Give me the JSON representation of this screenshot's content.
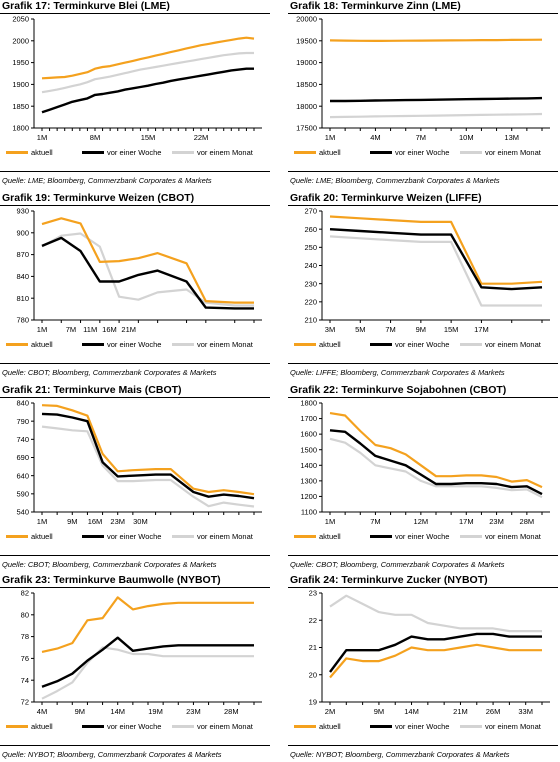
{
  "colors": {
    "aktuell": "#F4A11E",
    "woche": "#000000",
    "monat": "#D3D3D3",
    "axis": "#000000"
  },
  "chart_data": [
    {
      "prefix": "Grafik 17",
      "title": "Terminkurve Blei (LME)",
      "type": "line",
      "categories": [
        "1M",
        "8M",
        "15M",
        "22M"
      ],
      "x": [
        1,
        2,
        3,
        4,
        5,
        6,
        7,
        8,
        9,
        10,
        11,
        12,
        13,
        14,
        15,
        16,
        17,
        18,
        19,
        20,
        21,
        22,
        23,
        24,
        25,
        26,
        27,
        28,
        29
      ],
      "ylim": [
        1800,
        2050
      ],
      "yticks": [
        1800,
        1850,
        1900,
        1950,
        2000,
        2050
      ],
      "series": [
        {
          "name": "aktuell",
          "values": [
            1914,
            1915,
            1916,
            1917,
            1920,
            1924,
            1928,
            1936,
            1940,
            1942,
            1946,
            1950,
            1954,
            1958,
            1962,
            1966,
            1970,
            1974,
            1978,
            1982,
            1986,
            1990,
            1993,
            1996,
            1999,
            2002,
            2005,
            2007,
            2005
          ]
        },
        {
          "name": "vor einer Woche",
          "values": [
            1836,
            1842,
            1848,
            1854,
            1860,
            1864,
            1868,
            1876,
            1878,
            1881,
            1884,
            1888,
            1891,
            1894,
            1897,
            1901,
            1904,
            1908,
            1911,
            1914,
            1917,
            1920,
            1923,
            1926,
            1929,
            1932,
            1934,
            1936,
            1936
          ]
        },
        {
          "name": "vor einem Monat",
          "values": [
            1882,
            1885,
            1888,
            1892,
            1896,
            1900,
            1905,
            1912,
            1915,
            1918,
            1922,
            1926,
            1930,
            1934,
            1937,
            1940,
            1943,
            1946,
            1949,
            1952,
            1955,
            1958,
            1961,
            1964,
            1967,
            1969,
            1971,
            1972,
            1972
          ]
        }
      ],
      "legend": [
        "aktuell",
        "vor einer Woche",
        "vor einem Monat"
      ],
      "source": "Quelle: LME; Bloomberg, Commerzbank Corporates & Markets"
    },
    {
      "prefix": "Grafik 18",
      "title": "Terminkurve Zinn (LME)",
      "type": "line",
      "categories": [
        "1M",
        "4M",
        "7M",
        "10M",
        "13M"
      ],
      "x": [
        1,
        2,
        3,
        4,
        5,
        6,
        7,
        8,
        9,
        10,
        11,
        12,
        13,
        14,
        15
      ],
      "ylim": [
        17500,
        20000
      ],
      "yticks": [
        17500,
        18000,
        18500,
        19000,
        19500,
        20000
      ],
      "series": [
        {
          "name": "aktuell",
          "values": [
            19510,
            19505,
            19500,
            19498,
            19500,
            19502,
            19505,
            19507,
            19510,
            19512,
            19515,
            19517,
            19520,
            19522,
            19525
          ]
        },
        {
          "name": "vor einer Woche",
          "values": [
            18120,
            18120,
            18125,
            18130,
            18135,
            18140,
            18145,
            18150,
            18155,
            18160,
            18165,
            18170,
            18175,
            18180,
            18185
          ]
        },
        {
          "name": "vor einem Monat",
          "values": [
            17750,
            17755,
            17760,
            17765,
            17770,
            17775,
            17780,
            17785,
            17790,
            17795,
            17800,
            17805,
            17810,
            17815,
            17820
          ]
        }
      ],
      "legend": [
        "aktuell",
        "vor einer Woche",
        "vor einem Monat"
      ],
      "source": "Quelle: LME; Bloomberg, Commerzbank Corporates & Markets"
    },
    {
      "prefix": "Grafik 19",
      "title": "Terminkurve Weizen (CBOT)",
      "type": "line",
      "categories": [
        "1M",
        "7M",
        "11M",
        "16M",
        "21M"
      ],
      "x": [
        1,
        3,
        5,
        7,
        9,
        11,
        13,
        16,
        18,
        21,
        23
      ],
      "ylim": [
        780,
        930
      ],
      "yticks": [
        780,
        810,
        840,
        870,
        900,
        930
      ],
      "series": [
        {
          "name": "aktuell",
          "values": [
            912,
            920,
            913,
            860,
            861,
            865,
            872,
            858,
            806,
            804,
            804
          ]
        },
        {
          "name": "vor einer Woche",
          "values": [
            882,
            893,
            875,
            833,
            833,
            842,
            848,
            833,
            797,
            796,
            796
          ]
        },
        {
          "name": "vor einem Monat",
          "values": [
            881,
            896,
            899,
            881,
            812,
            808,
            818,
            822,
            804,
            800,
            800
          ]
        }
      ],
      "legend": [
        "aktuell",
        "vor einer Woche",
        "vor einem Monat"
      ],
      "source": "Quelle: CBOT; Bloomberg, Commerzbank Corporates & Markets"
    },
    {
      "prefix": "Grafik 20",
      "title": "Terminkurve Weizen (LIFFE)",
      "type": "line",
      "categories": [
        "3M",
        "5M",
        "7M",
        "9M",
        "15M",
        "17M"
      ],
      "x": [
        1,
        2,
        3,
        4,
        5,
        6,
        7,
        8
      ],
      "ylim": [
        210,
        270
      ],
      "yticks": [
        210,
        220,
        230,
        240,
        250,
        260,
        270
      ],
      "series": [
        {
          "name": "aktuell",
          "values": [
            267,
            266,
            265,
            264,
            264,
            230,
            230,
            231
          ]
        },
        {
          "name": "vor einer Woche",
          "values": [
            260,
            259,
            258,
            257,
            257,
            228,
            227,
            228
          ]
        },
        {
          "name": "vor einem Monat",
          "values": [
            256,
            255,
            254,
            253,
            253,
            218,
            218,
            218
          ]
        }
      ],
      "legend": [
        "aktuell",
        "vor einer Woche",
        "vor einem Monat"
      ],
      "source": "Quelle: LIFFE; Bloomberg, Commerzbank Corporates & Markets"
    },
    {
      "prefix": "Grafik 21",
      "title": "Terminkurve Mais (CBOT)",
      "type": "line",
      "categories": [
        "1M",
        "9M",
        "16M",
        "23M",
        "30M"
      ],
      "x": [
        1,
        3,
        5,
        7,
        9,
        11,
        13,
        16,
        18,
        21,
        23,
        25,
        27,
        29
      ],
      "ylim": [
        540,
        840
      ],
      "yticks": [
        540,
        590,
        640,
        690,
        740,
        790,
        840
      ],
      "series": [
        {
          "name": "aktuell",
          "values": [
            834,
            832,
            820,
            805,
            700,
            652,
            655,
            658,
            658,
            604,
            595,
            600,
            595,
            589
          ]
        },
        {
          "name": "vor einer Woche",
          "values": [
            810,
            808,
            800,
            790,
            677,
            638,
            640,
            643,
            643,
            595,
            582,
            588,
            584,
            578
          ]
        },
        {
          "name": "vor einem Monat",
          "values": [
            775,
            770,
            765,
            762,
            668,
            625,
            625,
            628,
            628,
            582,
            556,
            566,
            560,
            555
          ]
        }
      ],
      "legend": [
        "aktuell",
        "vor einer Woche",
        "vor einem Monat"
      ],
      "source": "Quelle: CBOT; Bloomberg, Commerzbank Corporates & Markets"
    },
    {
      "prefix": "Grafik 22",
      "title": "Terminkurve Sojabohnen (CBOT)",
      "type": "line",
      "categories": [
        "1M",
        "7M",
        "12M",
        "17M",
        "23M",
        "28M"
      ],
      "x": [
        1,
        2,
        3,
        4,
        5,
        6,
        7,
        8,
        9,
        10,
        11,
        12,
        13,
        14,
        15
      ],
      "ylim": [
        1100,
        1800
      ],
      "yticks": [
        1100,
        1200,
        1300,
        1400,
        1500,
        1600,
        1700,
        1800
      ],
      "series": [
        {
          "name": "aktuell",
          "values": [
            1735,
            1720,
            1620,
            1530,
            1510,
            1470,
            1400,
            1330,
            1330,
            1335,
            1335,
            1325,
            1295,
            1305,
            1260
          ]
        },
        {
          "name": "vor einer Woche",
          "values": [
            1625,
            1615,
            1540,
            1460,
            1430,
            1400,
            1340,
            1280,
            1280,
            1285,
            1285,
            1280,
            1260,
            1265,
            1215
          ]
        },
        {
          "name": "vor einem Monat",
          "values": [
            1570,
            1545,
            1480,
            1400,
            1380,
            1360,
            1300,
            1265,
            1265,
            1265,
            1265,
            1255,
            1240,
            1245,
            1195
          ]
        }
      ],
      "legend": [
        "aktuell",
        "vor einer Woche",
        "vor einem Monat"
      ],
      "source": "Quelle: CBOT; Bloomberg, Commerzbank Corporates & Markets"
    },
    {
      "prefix": "Grafik 23",
      "title": "Terminkurve Baumwolle (NYBOT)",
      "type": "line",
      "categories": [
        "4M",
        "9M",
        "14M",
        "19M",
        "23M",
        "28M"
      ],
      "x": [
        1,
        2,
        3,
        4,
        5,
        6,
        7,
        8,
        9,
        10,
        11,
        12,
        13,
        14,
        15
      ],
      "ylim": [
        72,
        82
      ],
      "yticks": [
        72,
        74,
        76,
        78,
        80,
        82
      ],
      "series": [
        {
          "name": "aktuell",
          "values": [
            76.6,
            76.9,
            77.4,
            79.5,
            79.7,
            81.6,
            80.5,
            80.8,
            81.0,
            81.1,
            81.1,
            81.1,
            81.1,
            81.1,
            81.1
          ]
        },
        {
          "name": "vor einer Woche",
          "values": [
            73.4,
            73.9,
            74.6,
            75.8,
            76.8,
            77.9,
            76.7,
            76.9,
            77.1,
            77.2,
            77.2,
            77.2,
            77.2,
            77.2,
            77.2
          ]
        },
        {
          "name": "vor einem Monat",
          "values": [
            72.3,
            73.0,
            73.8,
            75.6,
            77.0,
            76.8,
            76.4,
            76.4,
            76.2,
            76.2,
            76.2,
            76.2,
            76.2,
            76.2,
            76.2
          ]
        }
      ],
      "legend": [
        "aktuell",
        "vor einer Woche",
        "vor einem Monat"
      ],
      "source": "Quelle: NYBOT; Bloomberg, Commerzbank Corporates & Markets"
    },
    {
      "prefix": "Grafik 24",
      "title": "Terminkurve Zucker (NYBOT)",
      "type": "line",
      "categories": [
        "2M",
        "9M",
        "14M",
        "21M",
        "26M",
        "33M"
      ],
      "x": [
        1,
        2,
        3,
        4,
        5,
        6,
        7,
        8,
        9,
        10,
        11,
        12,
        13,
        14
      ],
      "ylim": [
        19,
        23
      ],
      "yticks": [
        19,
        20,
        21,
        22,
        23
      ],
      "series": [
        {
          "name": "aktuell",
          "values": [
            19.9,
            20.6,
            20.5,
            20.5,
            20.7,
            21.0,
            20.9,
            20.9,
            21.0,
            21.1,
            21.0,
            20.9,
            20.9,
            20.9
          ]
        },
        {
          "name": "vor einer Woche",
          "values": [
            20.1,
            20.9,
            20.9,
            20.9,
            21.1,
            21.4,
            21.3,
            21.3,
            21.4,
            21.5,
            21.5,
            21.4,
            21.4,
            21.4
          ]
        },
        {
          "name": "vor einem Monat",
          "values": [
            22.5,
            22.9,
            22.6,
            22.3,
            22.2,
            22.2,
            21.9,
            21.8,
            21.7,
            21.7,
            21.7,
            21.6,
            21.6,
            21.6
          ]
        }
      ],
      "legend": [
        "aktuell",
        "vor einer Woche",
        "vor einem Monat"
      ],
      "source": "Quelle: NYBOT; Bloomberg, Commerzbank Corporates & Markets"
    }
  ]
}
